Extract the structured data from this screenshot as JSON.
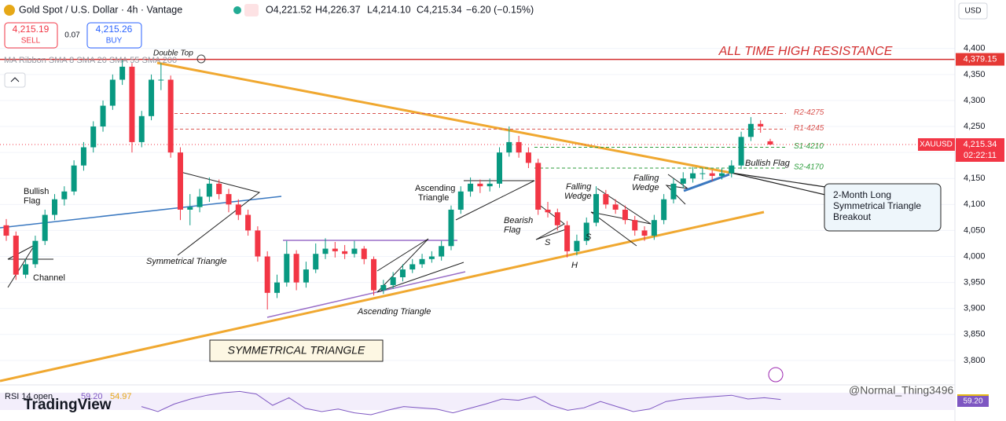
{
  "header": {
    "title": "Gold Spot / U.S. Dollar · 4h · Vantage",
    "open": "O4,221.52",
    "high": "H4,226.37",
    "low": "L4,214.10",
    "close": "C4,215.34",
    "change": "−6.20 (−0.15%)",
    "sell_price": "4,215.19",
    "sell": "SELL",
    "spread": "0.07",
    "buy_price": "4,215.26",
    "buy": "BUY",
    "currency": "USD",
    "indicator": "MA Ribbon SMA 8 SMA 20 SMA 55 SMA 200",
    "logo": "TradingView",
    "watermark": "@Normal_Thing3496"
  },
  "chart_data": {
    "type": "candlestick",
    "up_color": "#089981",
    "down_color": "#f23645",
    "ylim": [
      3753,
      4448
    ],
    "yticks": [
      {
        "value": 4400,
        "label": "4,400"
      },
      {
        "value": 4350,
        "label": "4,350"
      },
      {
        "value": 4300,
        "label": "4,300"
      },
      {
        "value": 4250,
        "label": "4,250"
      },
      {
        "value": 4200,
        "label": "4,200"
      },
      {
        "value": 4150,
        "label": "4,150"
      },
      {
        "value": 4100,
        "label": "4,100"
      },
      {
        "value": 4050,
        "label": "4,050"
      },
      {
        "value": 4000,
        "label": "4,000"
      },
      {
        "value": 3950,
        "label": "3,950"
      },
      {
        "value": 3900,
        "label": "3,900"
      },
      {
        "value": 3850,
        "label": "3,850"
      },
      {
        "value": 3800,
        "label": "3,800"
      }
    ],
    "grid": true,
    "candles": [
      [
        4060,
        4072,
        4030,
        4040
      ],
      [
        4040,
        4048,
        3955,
        3965
      ],
      [
        3965,
        3995,
        3958,
        3985
      ],
      [
        3985,
        4040,
        3978,
        4030
      ],
      [
        4030,
        4090,
        4022,
        4080
      ],
      [
        4080,
        4120,
        4070,
        4110
      ],
      [
        4110,
        4135,
        4098,
        4125
      ],
      [
        4125,
        4185,
        4118,
        4175
      ],
      [
        4175,
        4220,
        4165,
        4210
      ],
      [
        4210,
        4260,
        4200,
        4250
      ],
      [
        4250,
        4300,
        4240,
        4290
      ],
      [
        4290,
        4350,
        4282,
        4340
      ],
      [
        4340,
        4378,
        4330,
        4365
      ],
      [
        4365,
        4372,
        4200,
        4220
      ],
      [
        4220,
        4280,
        4210,
        4270
      ],
      [
        4270,
        4350,
        4262,
        4340
      ],
      [
        4340,
        4372,
        4320,
        4340
      ],
      [
        4340,
        4348,
        4190,
        4200
      ],
      [
        4200,
        4210,
        4070,
        4090
      ],
      [
        4090,
        4120,
        4060,
        4095
      ],
      [
        4095,
        4130,
        4085,
        4115
      ],
      [
        4115,
        4152,
        4105,
        4140
      ],
      [
        4140,
        4148,
        4110,
        4120
      ],
      [
        4120,
        4130,
        4085,
        4100
      ],
      [
        4100,
        4110,
        4070,
        4080
      ],
      [
        4080,
        4090,
        4040,
        4050
      ],
      [
        4050,
        4058,
        3990,
        4000
      ],
      [
        4000,
        4010,
        3898,
        3930
      ],
      [
        3930,
        3965,
        3920,
        3950
      ],
      [
        3950,
        4030,
        3942,
        4005
      ],
      [
        4005,
        4012,
        3935,
        3950
      ],
      [
        3950,
        3990,
        3940,
        3975
      ],
      [
        3975,
        4025,
        3968,
        4005
      ],
      [
        4005,
        4035,
        3995,
        4015
      ],
      [
        4015,
        4028,
        3998,
        4010
      ],
      [
        4010,
        4022,
        3995,
        4005
      ],
      [
        4005,
        4030,
        3998,
        4015
      ],
      [
        4015,
        4020,
        3985,
        3995
      ],
      [
        3995,
        4000,
        3925,
        3935
      ],
      [
        3935,
        3955,
        3928,
        3945
      ],
      [
        3945,
        3970,
        3938,
        3960
      ],
      [
        3960,
        3985,
        3952,
        3975
      ],
      [
        3975,
        3995,
        3968,
        3985
      ],
      [
        3985,
        4005,
        3978,
        3995
      ],
      [
        3995,
        4010,
        3988,
        4000
      ],
      [
        4000,
        4030,
        3992,
        4020
      ],
      [
        4020,
        4098,
        4012,
        4090
      ],
      [
        4090,
        4135,
        4082,
        4125
      ],
      [
        4125,
        4152,
        4115,
        4140
      ],
      [
        4140,
        4148,
        4122,
        4135
      ],
      [
        4135,
        4150,
        4125,
        4140
      ],
      [
        4140,
        4210,
        4132,
        4200
      ],
      [
        4200,
        4250,
        4192,
        4220
      ],
      [
        4220,
        4232,
        4190,
        4200
      ],
      [
        4200,
        4210,
        4170,
        4180
      ],
      [
        4180,
        4188,
        4080,
        4090
      ],
      [
        4090,
        4105,
        4075,
        4085
      ],
      [
        4085,
        4092,
        4050,
        4060
      ],
      [
        4060,
        4068,
        3998,
        4010
      ],
      [
        4010,
        4042,
        4002,
        4030
      ],
      [
        4030,
        4075,
        4022,
        4065
      ],
      [
        4065,
        4135,
        4058,
        4120
      ],
      [
        4120,
        4128,
        4092,
        4100
      ],
      [
        4100,
        4110,
        4082,
        4090
      ],
      [
        4090,
        4098,
        4062,
        4070
      ],
      [
        4070,
        4078,
        4040,
        4050
      ],
      [
        4050,
        4058,
        4030,
        4040
      ],
      [
        4040,
        4080,
        4032,
        4070
      ],
      [
        4070,
        4120,
        4062,
        4110
      ],
      [
        4110,
        4150,
        4102,
        4140
      ],
      [
        4140,
        4162,
        4132,
        4150
      ],
      [
        4150,
        4172,
        4142,
        4160
      ],
      [
        4160,
        4170,
        4148,
        4160
      ],
      [
        4160,
        4166,
        4145,
        4155
      ],
      [
        4155,
        4170,
        4148,
        4160
      ],
      [
        4160,
        4185,
        4152,
        4175
      ],
      [
        4175,
        4240,
        4168,
        4230
      ],
      [
        4230,
        4268,
        4222,
        4255
      ],
      [
        4255,
        4262,
        4238,
        4250
      ],
      [
        4221.52,
        4226.37,
        4214.1,
        4215.34
      ]
    ],
    "resistance": {
      "value": 4379.15,
      "label": "4,379.15"
    },
    "last_price": {
      "value": 4215.34,
      "label": "4,215.34",
      "symbol": "XAUUSD",
      "countdown": "02:22:11"
    },
    "levels": [
      {
        "label": "R2-4275",
        "value": 4275,
        "color": "#d9534f"
      },
      {
        "label": "R1-4245",
        "value": 4245,
        "color": "#d9534f"
      },
      {
        "label": "S1-4210",
        "value": 4210,
        "color": "#2e9e3e"
      },
      {
        "label": "S2-4170",
        "value": 4170,
        "color": "#2e9e3e"
      }
    ],
    "annotations": [
      "Double Top",
      "ALL TIME HIGH RESISTANCE",
      "Bullish",
      "Flag",
      "Channel",
      "Symmetrical Triangle",
      "Ascending Triangle",
      "SYMMETRICAL TRIANGLE",
      "Ascending",
      "Triangle",
      "Bearish",
      "Flag",
      "S",
      "S",
      "H",
      "Falling",
      "Wedge",
      "Falling",
      "Wedge",
      "Bullish Flag",
      "2-Month Long",
      "Symmetrical Triangle",
      "Breakout"
    ],
    "rsi": {
      "label": "RSI 14 open",
      "value": {
        "value": 59.2,
        "label": "59.20"
      },
      "signal": {
        "value": 54.97,
        "label": "54.97"
      },
      "ylim": [
        30,
        80
      ],
      "values": [
        48,
        40,
        52,
        60,
        66,
        70,
        72,
        68,
        50,
        62,
        45,
        40,
        44,
        38,
        35,
        42,
        48,
        46,
        44,
        38,
        45,
        52,
        60,
        58,
        64,
        50,
        42,
        46,
        56,
        48,
        40,
        44,
        56,
        60,
        62,
        64,
        66,
        60,
        62,
        59.2
      ]
    }
  }
}
